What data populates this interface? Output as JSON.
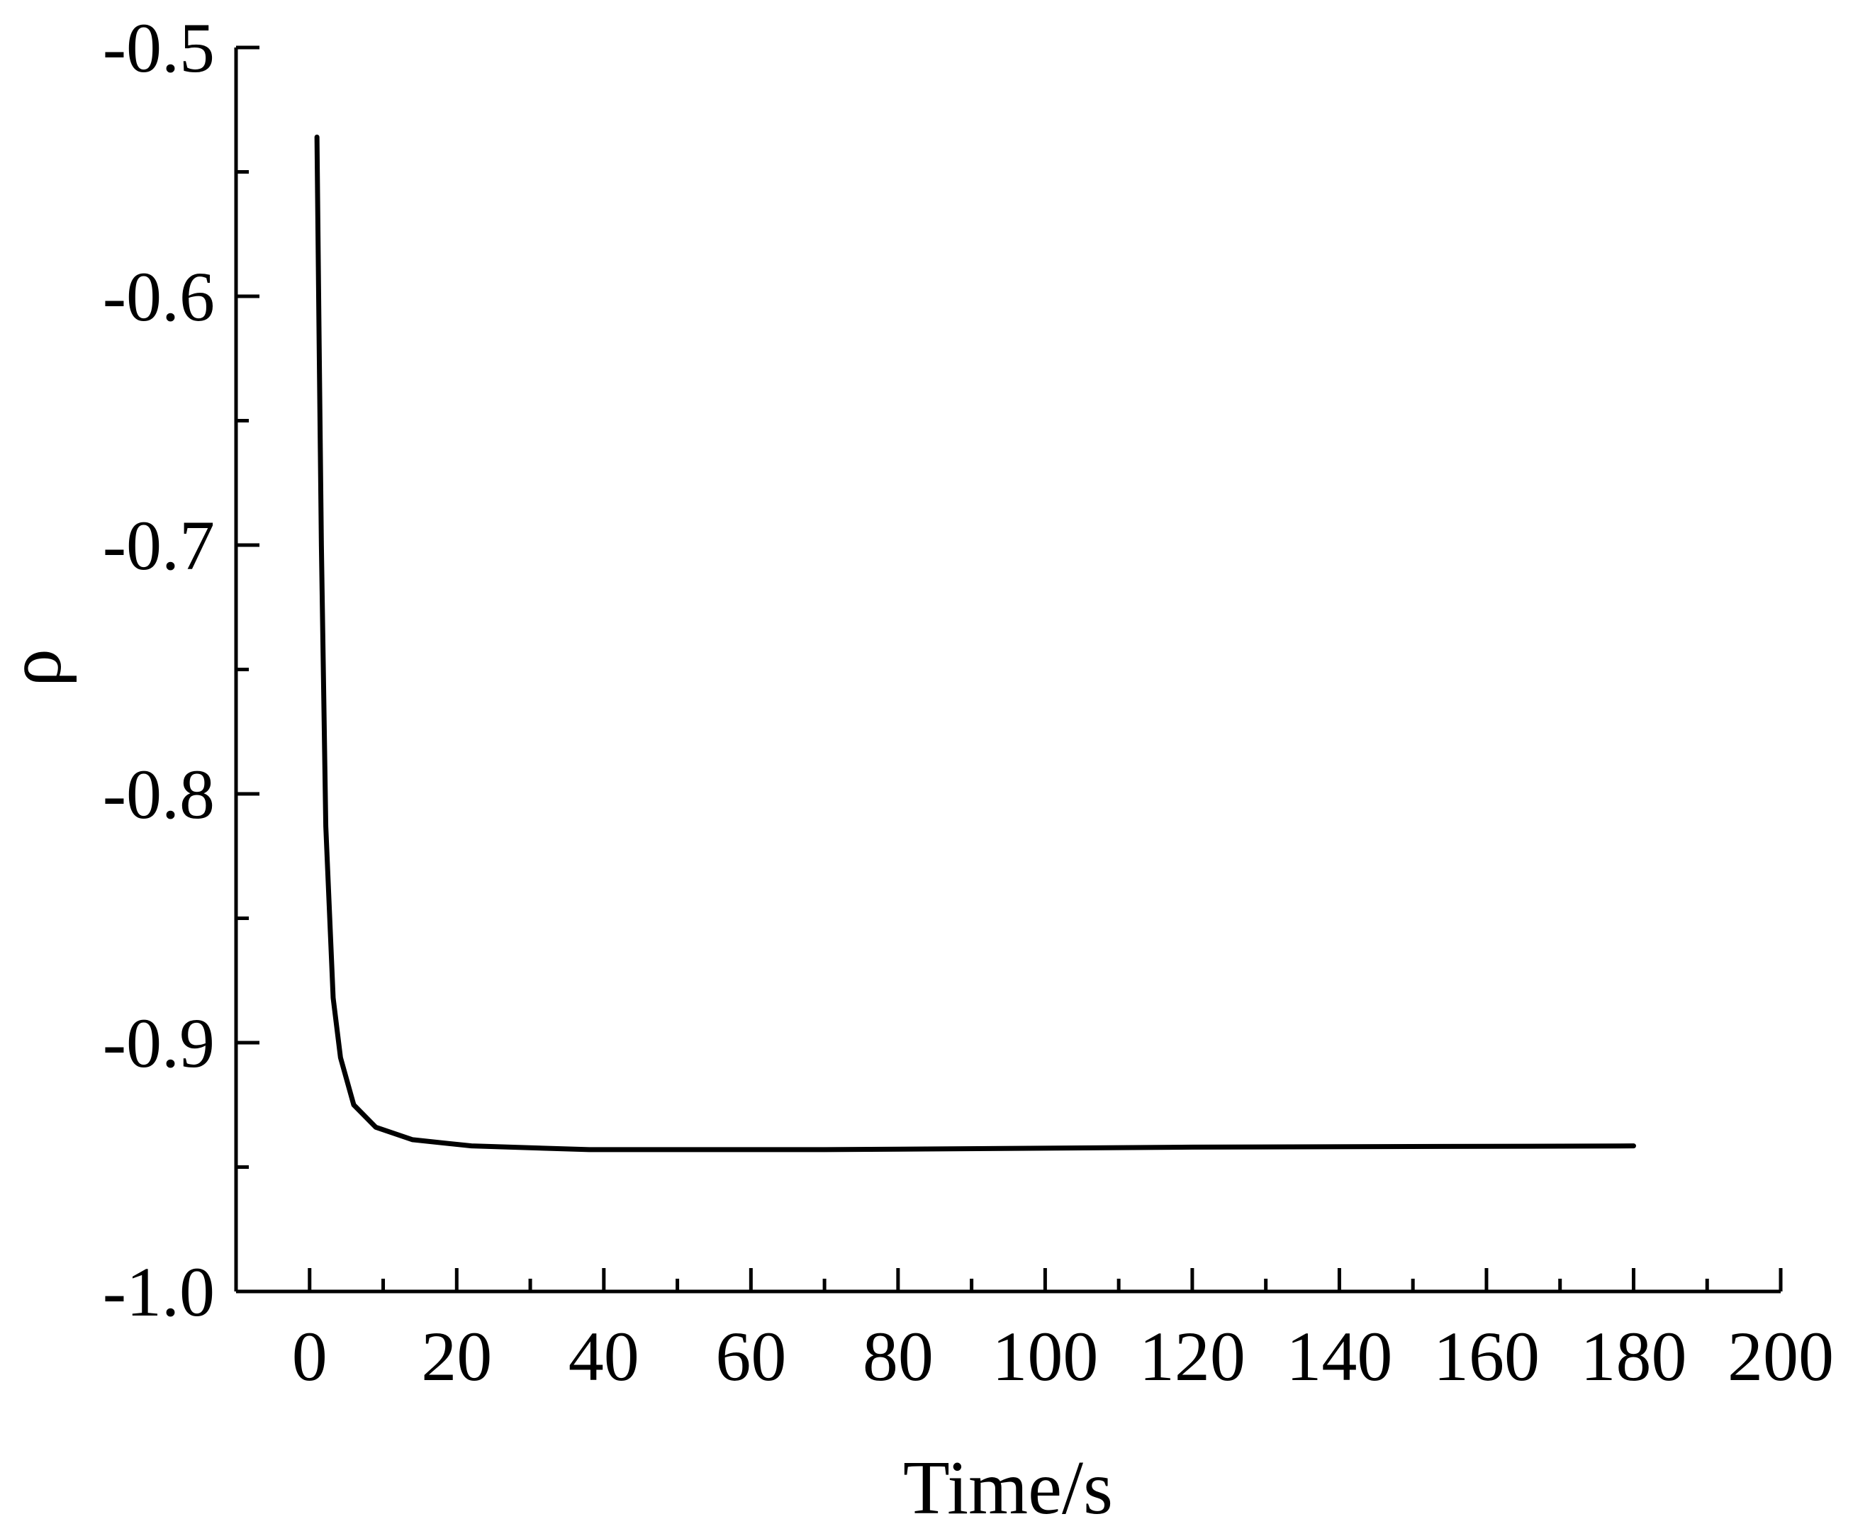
{
  "chart_data": {
    "type": "line",
    "x_label": "Time/s",
    "y_label": "ρ",
    "x": [
      1,
      1.3,
      1.6,
      2.2,
      3.2,
      4.2,
      6,
      9,
      14,
      22,
      38,
      70,
      120,
      180
    ],
    "series": [
      {
        "color": "#000000",
        "values": [
          -0.536,
          -0.62,
          -0.7,
          -0.813,
          -0.882,
          -0.906,
          -0.925,
          -0.934,
          -0.939,
          -0.9415,
          -0.943,
          -0.943,
          -0.942,
          -0.9415
        ]
      }
    ],
    "xlim": [
      -10,
      200
    ],
    "ylim": [
      -1.0,
      -0.5
    ],
    "xticks": [
      0,
      20,
      40,
      60,
      80,
      100,
      120,
      140,
      160,
      180,
      200
    ],
    "xminorticks": [
      10,
      30,
      50,
      70,
      90,
      110,
      130,
      150,
      170,
      190
    ],
    "yticks": [
      {
        "value": -1,
        "label": "-1.0"
      },
      -0.9,
      -0.8,
      -0.7,
      -0.6,
      -0.5
    ],
    "yminorticks": [
      -0.95,
      -0.85,
      -0.75,
      -0.65,
      -0.55
    ],
    "grid": false
  }
}
